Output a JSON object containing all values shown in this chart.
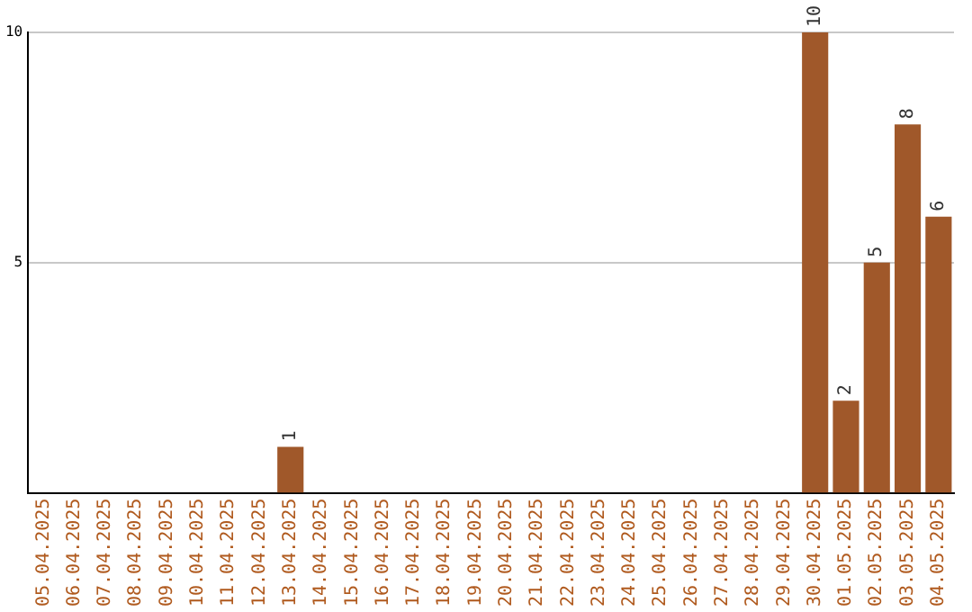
{
  "chart_data": {
    "type": "bar",
    "categories": [
      "05.04.2025",
      "06.04.2025",
      "07.04.2025",
      "08.04.2025",
      "09.04.2025",
      "10.04.2025",
      "11.04.2025",
      "12.04.2025",
      "13.04.2025",
      "14.04.2025",
      "15.04.2025",
      "16.04.2025",
      "17.04.2025",
      "18.04.2025",
      "19.04.2025",
      "20.04.2025",
      "21.04.2025",
      "22.04.2025",
      "23.04.2025",
      "24.04.2025",
      "25.04.2025",
      "26.04.2025",
      "27.04.2025",
      "28.04.2025",
      "29.04.2025",
      "30.04.2025",
      "01.05.2025",
      "02.05.2025",
      "03.05.2025",
      "04.05.2025"
    ],
    "values": [
      0,
      0,
      0,
      0,
      0,
      0,
      0,
      0,
      1,
      0,
      0,
      0,
      0,
      0,
      0,
      0,
      0,
      0,
      0,
      0,
      0,
      0,
      0,
      0,
      0,
      10,
      2,
      5,
      8,
      6
    ],
    "value_labels": [
      null,
      null,
      null,
      null,
      null,
      null,
      null,
      null,
      "1",
      null,
      null,
      null,
      null,
      null,
      null,
      null,
      null,
      null,
      null,
      null,
      null,
      null,
      null,
      null,
      null,
      "10",
      "2",
      "5",
      "8",
      "6"
    ],
    "color": "#a0582a",
    "ylim": [
      0,
      10
    ],
    "yticks": [
      5,
      10
    ],
    "grid": "y",
    "legend": false
  }
}
